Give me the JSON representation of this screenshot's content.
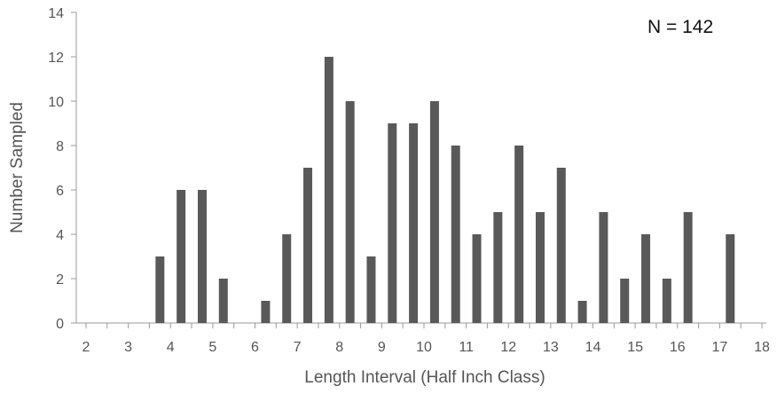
{
  "chart_data": {
    "type": "bar",
    "xlabel": "Length Interval (Half Inch Class)",
    "ylabel": "Number Sampled",
    "annotation": "N = 142",
    "x_ticks": [
      2,
      3,
      4,
      5,
      6,
      7,
      8,
      9,
      10,
      11,
      12,
      13,
      14,
      15,
      16,
      17,
      18
    ],
    "y_ticks": [
      0,
      2,
      4,
      6,
      8,
      10,
      12,
      14
    ],
    "xlim": [
      2,
      18
    ],
    "ylim": [
      0,
      14
    ],
    "grid": false,
    "bar_color": "#595959",
    "x": [
      2,
      2.5,
      3,
      3.5,
      4,
      4.5,
      5,
      5.5,
      6,
      6.5,
      7,
      7.5,
      8,
      8.5,
      9,
      9.5,
      10,
      10.5,
      11,
      11.5,
      12,
      12.5,
      13,
      13.5,
      14,
      14.5,
      15,
      15.5,
      16,
      16.5,
      17,
      17.5
    ],
    "values": [
      0,
      0,
      0,
      3,
      6,
      6,
      2,
      0,
      1,
      4,
      7,
      12,
      10,
      3,
      9,
      9,
      10,
      8,
      4,
      5,
      8,
      5,
      7,
      1,
      5,
      2,
      4,
      2,
      5,
      0,
      4,
      0
    ]
  }
}
